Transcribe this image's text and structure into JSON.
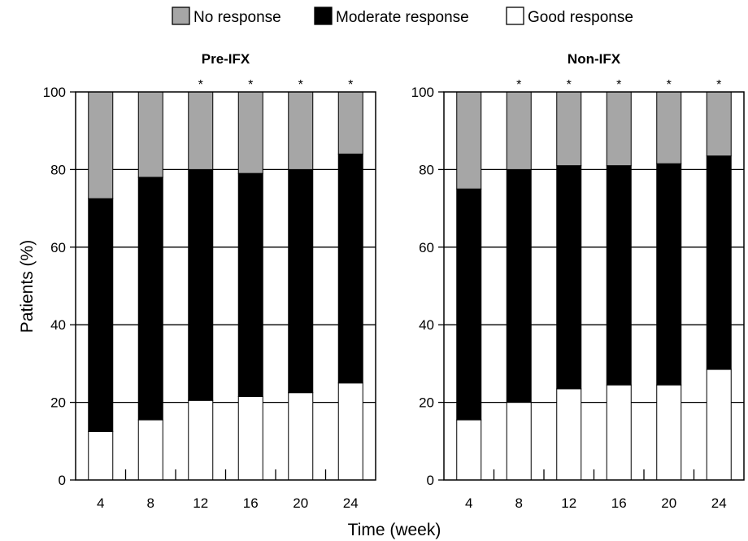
{
  "chart_data": {
    "type": "bar",
    "stacked": true,
    "ylabel": "Patients (%)",
    "xlabel": "Time (week)",
    "ylim": [
      0,
      100
    ],
    "yticks": [
      0,
      20,
      40,
      60,
      80,
      100
    ],
    "grid": true,
    "legend": {
      "placement": "top-center",
      "entries": [
        {
          "name": "No response",
          "color": "#a6a6a6"
        },
        {
          "name": "Moderate response",
          "color": "#000000"
        },
        {
          "name": "Good response",
          "color": "#ffffff"
        }
      ]
    },
    "categories": [
      "4",
      "8",
      "12",
      "16",
      "20",
      "24"
    ],
    "panels": [
      {
        "title": "Pre-IFX",
        "series": [
          {
            "name": "Good response",
            "values": [
              12.5,
              15.5,
              20.5,
              21.5,
              22.5,
              25
            ]
          },
          {
            "name": "Moderate response",
            "values": [
              60,
              62.5,
              59.5,
              57.5,
              57.5,
              59
            ]
          },
          {
            "name": "No response",
            "values": [
              27.5,
              22,
              20,
              21,
              20,
              16
            ]
          }
        ],
        "annotations": [
          "",
          "",
          "*",
          "*",
          "*",
          "*"
        ]
      },
      {
        "title": "Non-IFX",
        "series": [
          {
            "name": "Good response",
            "values": [
              15.5,
              20,
              23.5,
              24.5,
              24.5,
              28.5
            ]
          },
          {
            "name": "Moderate response",
            "values": [
              59.5,
              60,
              57.5,
              56.5,
              57,
              55
            ]
          },
          {
            "name": "No response",
            "values": [
              25,
              20,
              19,
              19,
              18.5,
              16.5
            ]
          }
        ],
        "annotations": [
          "",
          "*",
          "*",
          "*",
          "*",
          "*"
        ]
      }
    ]
  }
}
